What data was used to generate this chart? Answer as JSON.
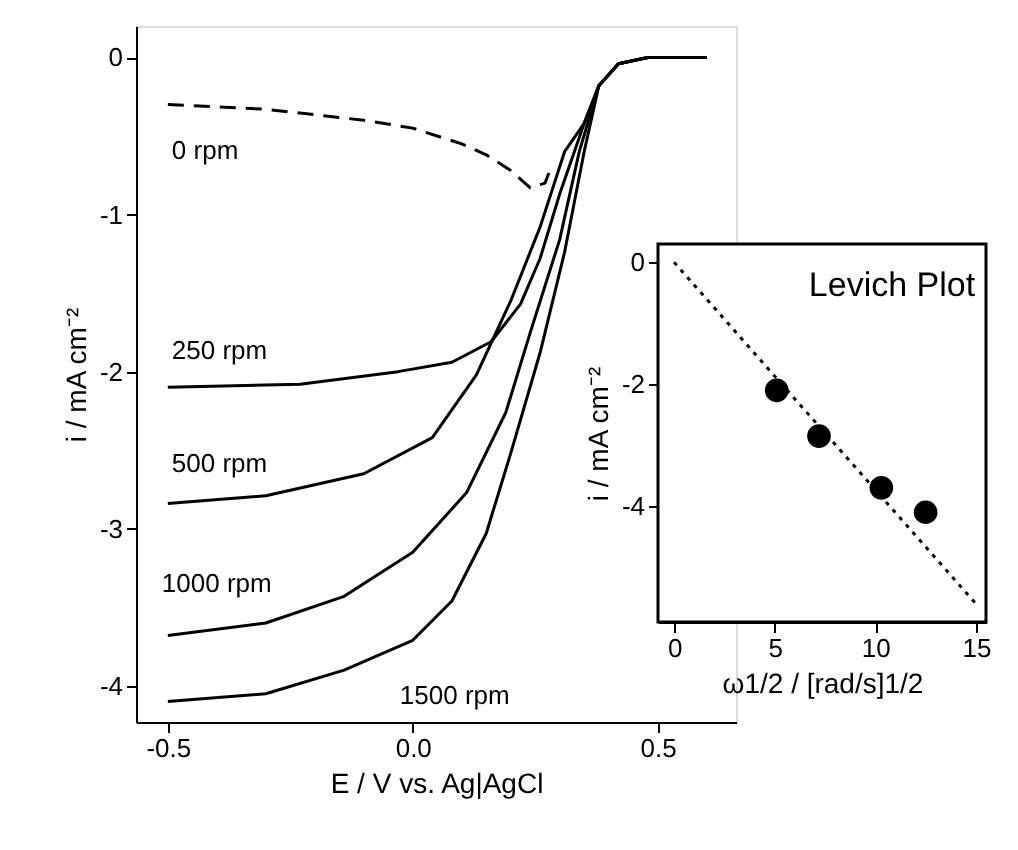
{
  "chart_data": [
    {
      "type": "line",
      "xlabel": "E / V vs. Ag|AgCl",
      "ylabel": "i / mA cm⁻²",
      "xlim": [
        -0.565,
        0.66
      ],
      "ylim": [
        -4.23,
        0.2
      ],
      "xticks": [
        {
          "value": -0.5,
          "label": "-0.5"
        },
        {
          "value": 0,
          "label": "0.0"
        },
        {
          "value": 0.5,
          "label": "0.5"
        }
      ],
      "yticks": [
        0,
        -1,
        -2,
        -3,
        -4
      ],
      "grid": false,
      "series": [
        {
          "name": "0 rpm",
          "color": "#000000",
          "line_style": "dashed",
          "x": [
            -0.5,
            -0.3,
            -0.1,
            0.0,
            0.1,
            0.15,
            0.2,
            0.24,
            0.27,
            0.28
          ],
          "values": [
            -0.3,
            -0.33,
            -0.4,
            -0.45,
            -0.55,
            -0.62,
            -0.72,
            -0.83,
            -0.8,
            -0.72
          ]
        },
        {
          "name": "250 rpm",
          "color": "#000000",
          "line_style": "solid",
          "x": [
            -0.5,
            -0.23,
            -0.03,
            0.08,
            0.16,
            0.22,
            0.26,
            0.3,
            0.35,
            0.38,
            0.42,
            0.48,
            0.6
          ],
          "values": [
            -2.1,
            -2.08,
            -2.0,
            -1.94,
            -1.81,
            -1.57,
            -1.28,
            -0.87,
            -0.42,
            -0.18,
            -0.04,
            0,
            0
          ]
        },
        {
          "name": "500 rpm",
          "color": "#000000",
          "line_style": "solid",
          "x": [
            -0.5,
            -0.3,
            -0.1,
            0.04,
            0.13,
            0.2,
            0.26,
            0.31,
            0.35,
            0.38,
            0.42,
            0.48,
            0.6
          ],
          "values": [
            -2.84,
            -2.79,
            -2.65,
            -2.42,
            -2.02,
            -1.55,
            -1.08,
            -0.6,
            -0.42,
            -0.18,
            -0.04,
            0,
            0
          ]
        },
        {
          "name": "1000 rpm",
          "color": "#000000",
          "line_style": "solid",
          "x": [
            -0.5,
            -0.3,
            -0.14,
            0.0,
            0.11,
            0.19,
            0.24,
            0.3,
            0.34,
            0.38,
            0.42,
            0.48,
            0.6
          ],
          "values": [
            -3.68,
            -3.6,
            -3.43,
            -3.15,
            -2.77,
            -2.26,
            -1.75,
            -1.16,
            -0.6,
            -0.18,
            -0.04,
            0,
            0
          ]
        },
        {
          "name": "1500 rpm",
          "color": "#000000",
          "line_style": "solid",
          "x": [
            -0.5,
            -0.3,
            -0.14,
            0.0,
            0.08,
            0.15,
            0.2,
            0.26,
            0.31,
            0.35,
            0.38,
            0.42,
            0.48,
            0.6
          ],
          "values": [
            -4.1,
            -4.05,
            -3.9,
            -3.71,
            -3.46,
            -3.03,
            -2.52,
            -1.88,
            -1.24,
            -0.6,
            -0.18,
            -0.04,
            0,
            0
          ]
        }
      ]
    },
    {
      "type": "scatter",
      "title": "Levich Plot",
      "xlabel": "ω1/2 / [rad/s]1/2",
      "ylabel": "i / mA cm⁻²",
      "xlim": [
        -0.8,
        15.5
      ],
      "ylim": [
        -5.9,
        0.3
      ],
      "xticks": [
        0,
        5,
        10,
        15
      ],
      "yticks": [
        0,
        -2,
        -4
      ],
      "grid": false,
      "series": [
        {
          "color": "#000000",
          "marker": "circle",
          "x": [
            5.1,
            7.2,
            10.3,
            12.5
          ],
          "values": [
            -2.1,
            -2.85,
            -3.7,
            -4.1
          ]
        },
        {
          "type": "line",
          "color": "#000000",
          "line_style": "dotted",
          "x": [
            0,
            15
          ],
          "values": [
            0,
            -5.6
          ]
        }
      ]
    }
  ]
}
